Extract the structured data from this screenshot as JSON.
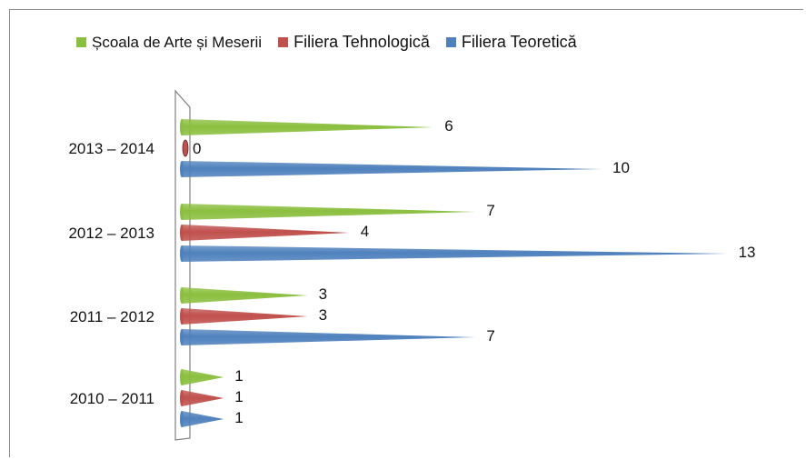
{
  "chart_data": {
    "type": "bar",
    "orientation": "horizontal",
    "categories": [
      "2010 – 2011",
      "2011 – 2012",
      "2012 – 2013",
      "2013 – 2014"
    ],
    "series": [
      {
        "name": "Școala de Arte și Meserii",
        "values": [
          1,
          3,
          7,
          6
        ],
        "color": "#8bbf3f"
      },
      {
        "name": "Filiera Tehnologică",
        "values": [
          1,
          3,
          4,
          0
        ],
        "color": "#c0504d"
      },
      {
        "name": "Filiera Teoretică",
        "values": [
          1,
          7,
          13,
          10
        ],
        "color": "#4f81bd"
      }
    ],
    "xlim": [
      0,
      13
    ],
    "legend_position": "top",
    "grid": false,
    "data_labels": true
  }
}
